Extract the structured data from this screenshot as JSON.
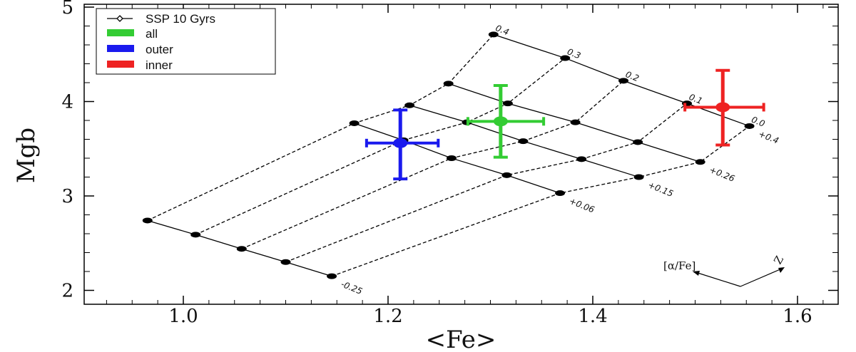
{
  "chart_data": {
    "type": "scatter",
    "xlabel": "<Fe>",
    "ylabel": "Mgb",
    "xlim": [
      0.9,
      1.65
    ],
    "ylim": [
      1.9,
      5.0
    ],
    "x_ticks": [
      "1.0",
      "1.2",
      "1.4",
      "1.6"
    ],
    "x_tick_values": [
      1.0,
      1.2,
      1.4,
      1.6
    ],
    "y_ticks": [
      "2",
      "3",
      "4",
      "5"
    ],
    "y_tick_values": [
      2,
      3,
      4,
      5
    ],
    "legend_position": "top-left",
    "legend": [
      {
        "label": "SSP 10 Gyrs",
        "color": "#000000",
        "marker": "line-diamond"
      },
      {
        "label": "all",
        "color": "#33cc33",
        "marker": "box"
      },
      {
        "label": "outer",
        "color": "#1a1aee",
        "marker": "box"
      },
      {
        "label": "inner",
        "color": "#ee2222",
        "marker": "box"
      }
    ],
    "ssp_grid": {
      "name": "SSP 10 Gyrs",
      "alpha_fe_labels": [
        "0.0",
        "0.1",
        "0.2",
        "0.3",
        "0.4"
      ],
      "z_labels": [
        "-0.25",
        "+0.06",
        "+0.15",
        "+0.26",
        "+0.4"
      ],
      "lines": [
        {
          "z": "-0.25",
          "points": [
            [
              0.965,
              2.74
            ],
            [
              1.012,
              2.59
            ],
            [
              1.057,
              2.44
            ],
            [
              1.1,
              2.3
            ],
            [
              1.145,
              2.15
            ]
          ]
        },
        {
          "z": "+0.06",
          "points": [
            [
              1.167,
              3.77
            ],
            [
              1.215,
              3.59
            ],
            [
              1.262,
              3.4
            ],
            [
              1.316,
              3.22
            ],
            [
              1.368,
              3.03
            ]
          ]
        },
        {
          "z": "+0.15",
          "points": [
            [
              1.221,
              3.96
            ],
            [
              1.277,
              3.78
            ],
            [
              1.332,
              3.58
            ],
            [
              1.389,
              3.39
            ],
            [
              1.445,
              3.2
            ]
          ]
        },
        {
          "z": "+0.26",
          "points": [
            [
              1.259,
              4.19
            ],
            [
              1.317,
              3.98
            ],
            [
              1.383,
              3.78
            ],
            [
              1.444,
              3.57
            ],
            [
              1.505,
              3.36
            ]
          ]
        },
        {
          "z": "+0.4",
          "points": [
            [
              1.303,
              4.71
            ],
            [
              1.373,
              4.46
            ],
            [
              1.43,
              4.22
            ],
            [
              1.492,
              3.98
            ],
            [
              1.553,
              3.74
            ]
          ]
        }
      ]
    },
    "series": [
      {
        "name": "all",
        "color": "#33cc33",
        "x": 1.31,
        "y": 3.79,
        "x_err": [
          1.278,
          1.352
        ],
        "y_err": [
          3.41,
          4.17
        ]
      },
      {
        "name": "outer",
        "color": "#1a1aee",
        "x": 1.212,
        "y": 3.56,
        "x_err": [
          1.179,
          1.249
        ],
        "y_err": [
          3.18,
          3.91
        ]
      },
      {
        "name": "inner",
        "color": "#ee2222",
        "x": 1.527,
        "y": 3.94,
        "x_err": [
          1.49,
          1.567
        ],
        "y_err": [
          3.54,
          4.33
        ]
      }
    ]
  },
  "annotation": {
    "arrow_left_label": "[α/Fe]",
    "arrow_right_label": "Z"
  }
}
